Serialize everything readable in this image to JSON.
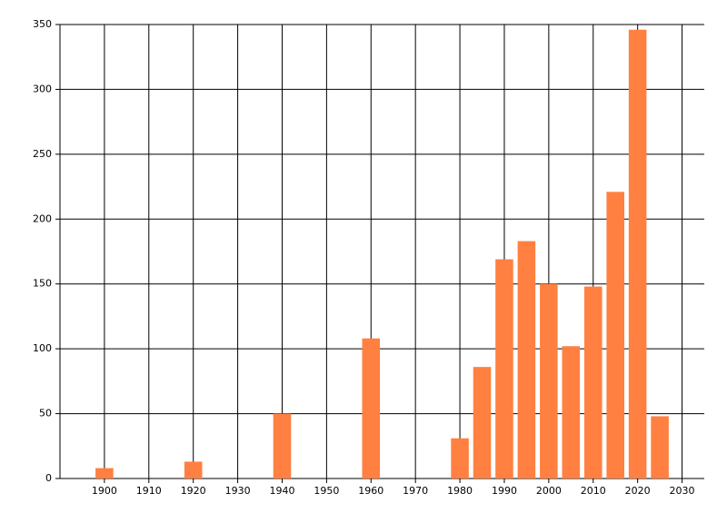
{
  "chart_data": {
    "type": "bar",
    "x": [
      1900,
      1920,
      1940,
      1960,
      1980,
      1985,
      1990,
      1995,
      2000,
      2005,
      2010,
      2015,
      2020,
      2025
    ],
    "values": [
      8,
      13,
      50,
      108,
      31,
      86,
      169,
      183,
      150,
      102,
      148,
      221,
      346,
      48
    ],
    "color": "#ff8040",
    "xlim": [
      1890,
      2035
    ],
    "xticks": [
      1900,
      1910,
      1920,
      1930,
      1940,
      1950,
      1960,
      1970,
      1980,
      1990,
      2000,
      2010,
      2020,
      2030
    ],
    "ylim": [
      0,
      350
    ],
    "yticks": [
      0,
      50,
      100,
      150,
      200,
      250,
      300,
      350
    ],
    "grid": true
  }
}
